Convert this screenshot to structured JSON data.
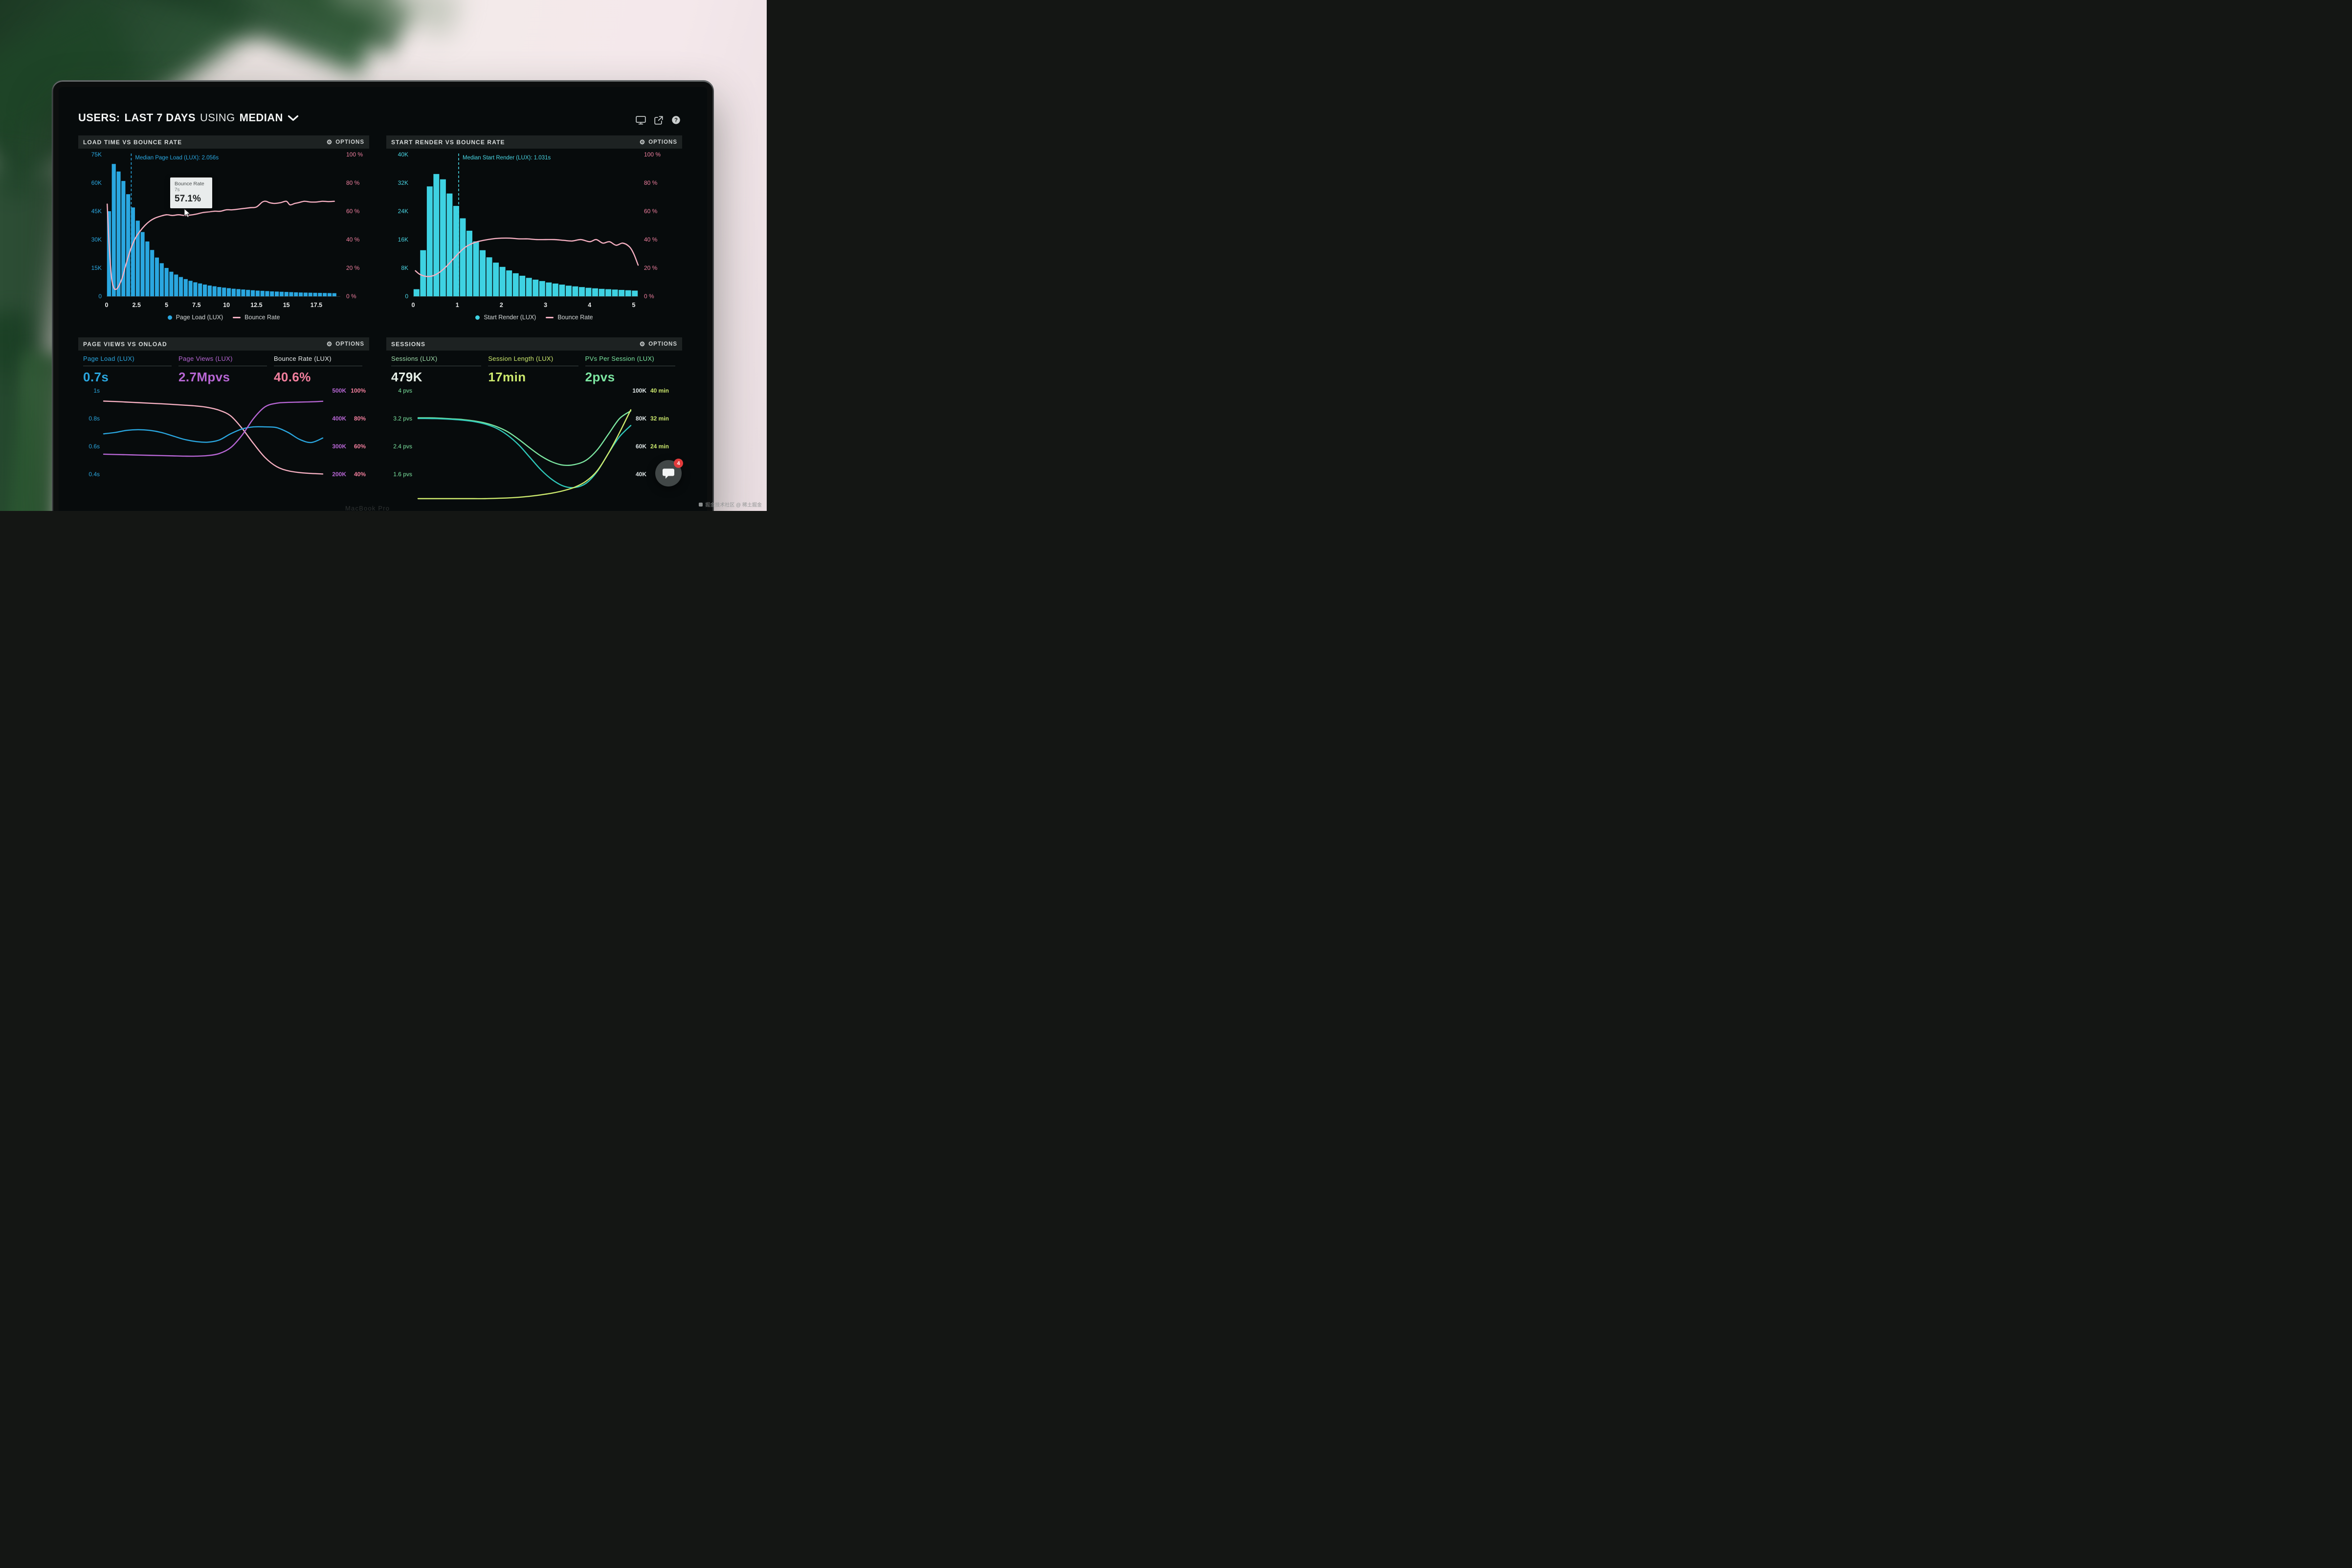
{
  "header": {
    "t1": "USERS:",
    "t2": "LAST 7 DAYS",
    "t3": "USING",
    "t4": "MEDIAN",
    "icons": [
      "display-icon",
      "external-link-icon",
      "help-icon"
    ]
  },
  "panels": [
    {
      "title": "LOAD TIME VS BOUNCE RATE",
      "options": "OPTIONS"
    },
    {
      "title": "START RENDER VS BOUNCE RATE",
      "options": "OPTIONS"
    },
    {
      "title": "PAGE VIEWS VS ONLOAD",
      "options": "OPTIONS"
    },
    {
      "title": "SESSIONS",
      "options": "OPTIONS"
    }
  ],
  "tooltip": {
    "label": "Bounce Rate",
    "x": "7s",
    "value": "57.1%"
  },
  "chat": {
    "badge": "4"
  },
  "brand": "MacBook Pro",
  "watermark": {
    "text": "掘金技术社区 @ 稀土掘金"
  },
  "chart_data": [
    {
      "type": "bar",
      "title": "LOAD TIME VS BOUNCE RATE",
      "x_axis": {
        "unit": "seconds",
        "ticks": [
          0,
          2.5,
          5,
          7.5,
          10,
          12.5,
          15,
          17.5
        ],
        "max": 19.5,
        "color": "#e8eaea"
      },
      "y_left": {
        "labels": [
          "75K",
          "60K",
          "45K",
          "30K",
          "15K",
          "0"
        ],
        "max_k": 75,
        "color": "#2aa7e0"
      },
      "y_right": {
        "labels": [
          "100 %",
          "80 %",
          "60 %",
          "40 %",
          "20 %",
          "0 %"
        ],
        "max": 100,
        "color": "#ef7f9f"
      },
      "median": {
        "value": 2.056,
        "label": "Median Page Load (LUX): 2.056s",
        "color": "#2aa7e0"
      },
      "bars": {
        "name": "Page Load (LUX)",
        "color": "#2aa7e0",
        "bin_width": 0.4,
        "unit": "K",
        "values_k": [
          45,
          70,
          66,
          61,
          54,
          47,
          40,
          34,
          29,
          24.5,
          20.5,
          17.5,
          15,
          13,
          11.5,
          10.2,
          9.1,
          8.2,
          7.4,
          6.8,
          6.2,
          5.7,
          5.3,
          4.9,
          4.6,
          4.3,
          4,
          3.8,
          3.6,
          3.4,
          3.2,
          3,
          2.9,
          2.75,
          2.6,
          2.5,
          2.4,
          2.3,
          2.2,
          2.1,
          2,
          1.95,
          1.9,
          1.85,
          1.8,
          1.75,
          1.7,
          1.65
        ]
      },
      "line": {
        "name": "Bounce Rate",
        "color": "#f6b0c2",
        "x": [
          0.05,
          0.2,
          0.4,
          0.6,
          0.8,
          1.0,
          1.3,
          1.6,
          2.0,
          2.4,
          2.8,
          3.2,
          3.6,
          4.0,
          4.5,
          5.0,
          5.5,
          6.0,
          6.5,
          7.0,
          7.5,
          8.0,
          8.5,
          9.0,
          9.5,
          10.0,
          10.5,
          11.0,
          11.5,
          12.0,
          12.5,
          13.0,
          13.3,
          13.6,
          14.0,
          14.5,
          15.0,
          15.3,
          15.7,
          16.0,
          16.5,
          17.0,
          17.5,
          18.0,
          18.5,
          19.0
        ],
        "y_pct": [
          65,
          38,
          14,
          6,
          5,
          7,
          13,
          22,
          33,
          41,
          46,
          50,
          53,
          55,
          56.5,
          57.5,
          57,
          57.5,
          57,
          57.3,
          58,
          59,
          59.5,
          60,
          60,
          61,
          61,
          61.5,
          62,
          62.5,
          63,
          66.5,
          67,
          66,
          65.5,
          66,
          67,
          64.5,
          65.5,
          66,
          67,
          66.5,
          66.5,
          67,
          66.8,
          67
        ]
      },
      "legend": [
        {
          "label": "Page Load (LUX)",
          "color": "#2aa7e0",
          "marker": "dot"
        },
        {
          "label": "Bounce Rate",
          "color": "#f6b0c2",
          "marker": "line"
        }
      ]
    },
    {
      "type": "bar",
      "title": "START RENDER VS BOUNCE RATE",
      "x_axis": {
        "unit": "seconds",
        "ticks": [
          0,
          1,
          2,
          3,
          4,
          5
        ],
        "max": 5.1,
        "color": "#e8eaea"
      },
      "y_left": {
        "labels": [
          "40K",
          "32K",
          "24K",
          "16K",
          "8K",
          "0"
        ],
        "max_k": 40,
        "color": "#49d6e4"
      },
      "y_right": {
        "labels": [
          "100 %",
          "80 %",
          "60 %",
          "40 %",
          "20 %",
          "0 %"
        ],
        "max": 100,
        "color": "#ef7f9f"
      },
      "median": {
        "value": 1.031,
        "label": "Median Start Render (LUX): 1.031s",
        "color": "#49d6e4"
      },
      "bars": {
        "name": "Start Render (LUX)",
        "color": "#3ed2e2",
        "bin_width": 0.15,
        "unit": "K",
        "values_k": [
          2,
          13,
          31,
          34.5,
          33,
          29,
          25.5,
          22,
          18.5,
          15.5,
          13,
          11,
          9.5,
          8.3,
          7.3,
          6.5,
          5.8,
          5.2,
          4.7,
          4.3,
          3.9,
          3.6,
          3.3,
          3,
          2.8,
          2.6,
          2.4,
          2.25,
          2.1,
          2,
          1.9,
          1.8,
          1.7,
          1.6
        ]
      },
      "line": {
        "name": "Bounce Rate",
        "color": "#f6b0c2",
        "x": [
          0.05,
          0.15,
          0.3,
          0.45,
          0.6,
          0.75,
          0.9,
          1.05,
          1.2,
          1.4,
          1.6,
          1.8,
          2.0,
          2.2,
          2.4,
          2.6,
          2.8,
          3.0,
          3.2,
          3.4,
          3.6,
          3.8,
          4.0,
          4.15,
          4.3,
          4.45,
          4.6,
          4.75,
          4.9,
          5.0,
          5.1
        ],
        "y_pct": [
          18,
          15.5,
          14,
          14.5,
          17,
          21,
          26,
          31,
          35,
          38,
          39.5,
          40.5,
          41,
          41,
          40.5,
          40.5,
          40,
          40,
          40,
          39.5,
          39,
          40,
          38.5,
          40,
          37.5,
          38.5,
          36,
          37.5,
          35,
          30,
          22
        ]
      },
      "legend": [
        {
          "label": "Start Render (LUX)",
          "color": "#3ed2e2",
          "marker": "dot"
        },
        {
          "label": "Bounce Rate",
          "color": "#f6b0c2",
          "marker": "line"
        }
      ]
    },
    {
      "type": "line",
      "title": "PAGE VIEWS VS ONLOAD",
      "metrics": [
        {
          "label": "Page Load (LUX)",
          "value": "0.7s",
          "label_color": "#2aa7e0",
          "color": "#2aa7e0"
        },
        {
          "label": "Page Views (LUX)",
          "value": "2.7Mpvs",
          "label_color": "#b766d4",
          "color": "#b766d4"
        },
        {
          "label": "Bounce Rate (LUX)",
          "value": "40.6%",
          "label_color": "#e9eded",
          "color": "#f27f9e"
        }
      ],
      "y_left": {
        "labels": [
          "1s",
          "0.8s",
          "0.6s",
          "0.4s"
        ],
        "top": 1,
        "step": 0.2,
        "color": "#2aa7e0"
      },
      "y_right_k": {
        "labels": [
          "500K",
          "400K",
          "300K",
          "200K"
        ],
        "top": 500,
        "step": 100,
        "color": "#b766d4"
      },
      "y_right_pct": {
        "labels": [
          "100%",
          "80%",
          "60%",
          "40%"
        ],
        "top": 100,
        "step": 20,
        "color": "#f27f9e"
      },
      "series": [
        {
          "name": "Bounce Rate",
          "axis": "pct",
          "color": "#f6b0c2",
          "values": [
            92.5,
            92.2,
            91.8,
            91.4,
            91,
            90.6,
            90.1,
            89.6,
            89,
            88,
            86,
            82,
            73,
            62,
            52,
            45.5,
            42.5,
            41.2,
            40.6,
            40.2
          ]
        },
        {
          "name": "Page Load",
          "axis": "s",
          "color": "#2aa7e0",
          "values": [
            0.69,
            0.7,
            0.715,
            0.72,
            0.715,
            0.7,
            0.675,
            0.65,
            0.635,
            0.63,
            0.645,
            0.69,
            0.725,
            0.74,
            0.74,
            0.735,
            0.7,
            0.65,
            0.628,
            0.66
          ]
        },
        {
          "name": "Page Views",
          "axis": "k",
          "color": "#b766d4",
          "values": [
            272,
            271,
            270,
            269,
            268,
            267,
            266,
            265,
            265,
            267,
            274,
            295,
            340,
            400,
            442,
            455,
            458,
            459,
            460,
            462
          ]
        }
      ]
    },
    {
      "type": "line",
      "title": "SESSIONS",
      "metrics": [
        {
          "label": "Sessions (LUX)",
          "value": "479K",
          "label_color": "#9fdcab",
          "color": "#e7f0e8"
        },
        {
          "label": "Session Length (LUX)",
          "value": "17min",
          "label_color": "#cdea6e",
          "color": "#cdea6e"
        },
        {
          "label": "PVs Per Session (LUX)",
          "value": "2pvs",
          "label_color": "#7ce6a1",
          "color": "#7ce6a1"
        }
      ],
      "y_left": {
        "labels": [
          "4 pvs",
          "3.2 pvs",
          "2.4 pvs",
          "1.6 pvs"
        ],
        "top": 4,
        "step": 0.8,
        "color": "#7ce6a1"
      },
      "y_right_k": {
        "labels": [
          "100K",
          "80K",
          "60K",
          "40K"
        ],
        "top": 100,
        "step": 20,
        "color": "#dfe7e7"
      },
      "y_right_min": {
        "labels": [
          "40 min",
          "32 min",
          "24 min",
          ""
        ],
        "top": 40,
        "step": 8,
        "color": "#cdea6e"
      },
      "series": [
        {
          "name": "PVs Per Session",
          "axis": "pvs",
          "color": "#7ce6a1",
          "values": [
            3.22,
            3.22,
            3.21,
            3.19,
            3.17,
            3.13,
            3.07,
            2.97,
            2.82,
            2.6,
            2.35,
            2.12,
            1.95,
            1.86,
            1.88,
            2.0,
            2.3,
            2.75,
            3.2,
            3.42
          ]
        },
        {
          "name": "Sessions",
          "axis": "k",
          "color": "#2fc9ba",
          "values": [
            80,
            80,
            79.8,
            79.4,
            78.8,
            77.8,
            76,
            73,
            68,
            61,
            52,
            43,
            36,
            31.5,
            30.5,
            33.5,
            42,
            55,
            67,
            75
          ]
        },
        {
          "name": "Session Length",
          "axis": "min",
          "color": "#cdea6e",
          "values": [
            9,
            9,
            9,
            9,
            9,
            9,
            9,
            9.1,
            9.2,
            9.4,
            9.7,
            10.1,
            10.6,
            11.3,
            12.3,
            14,
            17,
            22,
            28,
            34.5
          ]
        }
      ]
    }
  ]
}
